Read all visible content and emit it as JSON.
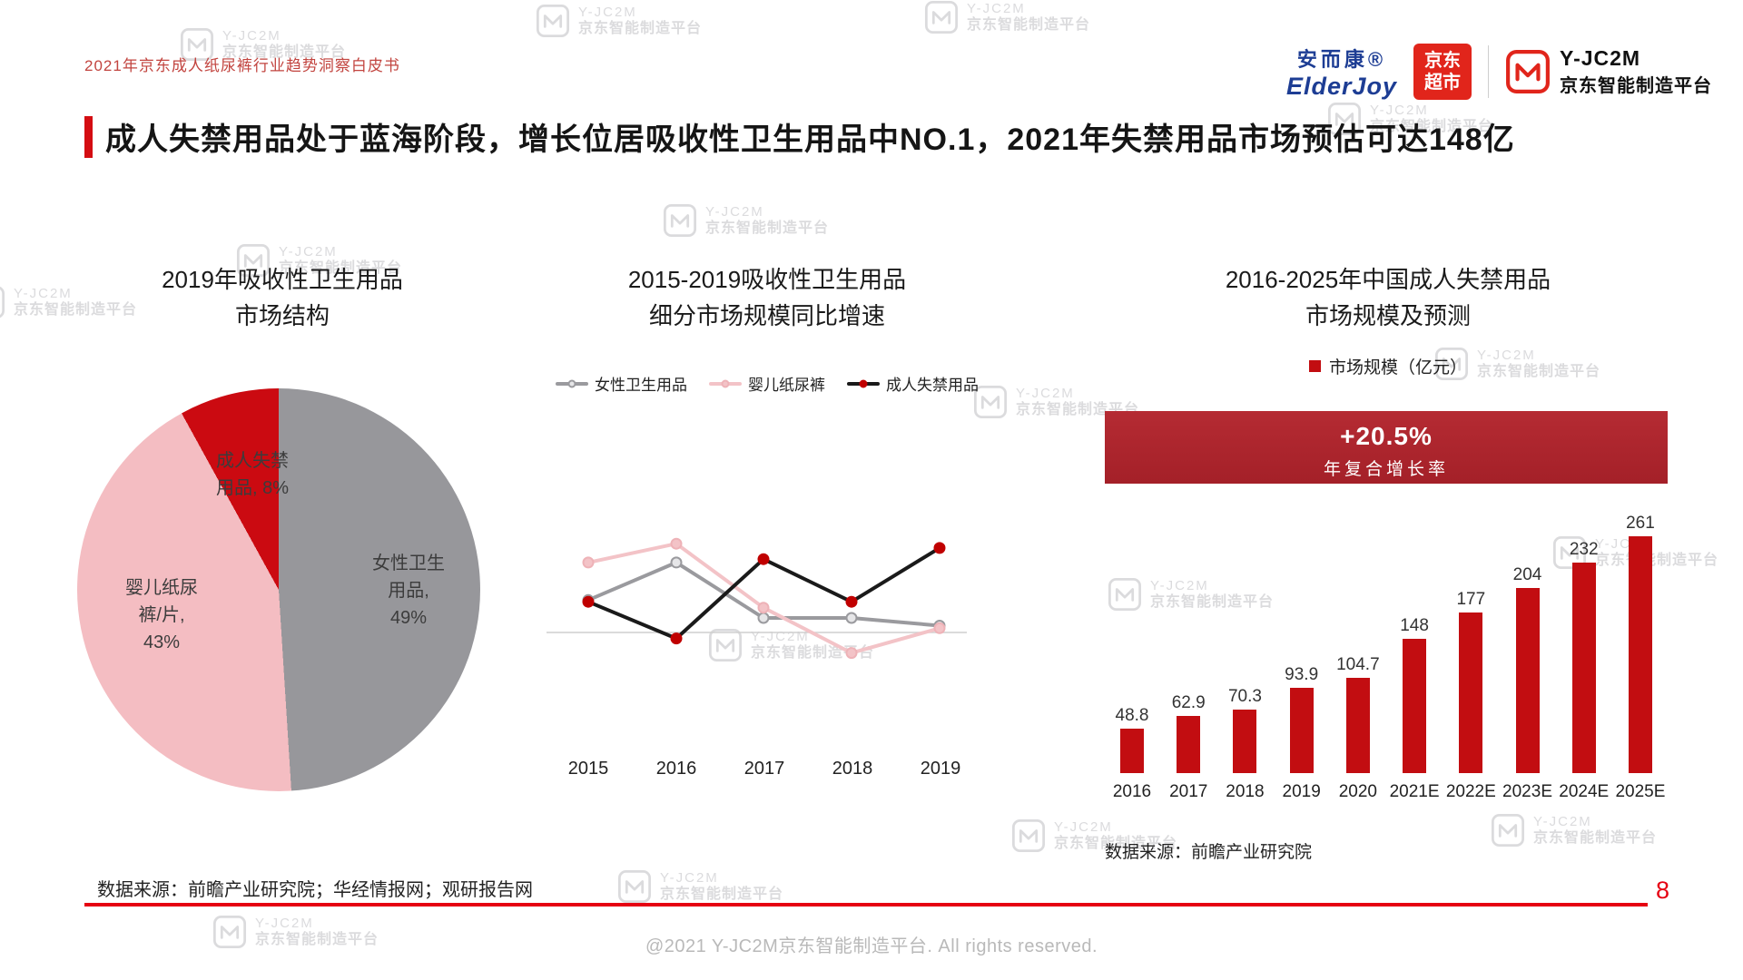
{
  "header": {
    "note": "2021年京东成人纸尿裤行业趋势洞察白皮书"
  },
  "logos": {
    "elderjoy_cn": "安而康®",
    "elderjoy_en": "ElderJoy",
    "jd_line1": "京东",
    "jd_line2": "超市",
    "yjc2m_name": "Y-JC2M",
    "yjc2m_sub": "京东智能制造平台"
  },
  "title": "成人失禁用品处于蓝海阶段，增长位居吸收性卫生用品中NO.1，2021年失禁用品市场预估可达148亿",
  "watermark": {
    "line1": "Y-JC2M",
    "line2": "京东智能制造平台"
  },
  "charts": {
    "pie": {
      "title_line1": "2019年吸收性卫生用品",
      "title_line2": "市场结构",
      "label_female": "女性卫生\n用品,\n49%",
      "label_baby": "婴儿纸尿\n裤/片,\n43%",
      "label_adult": "成人失禁\n用品, 8%"
    },
    "line": {
      "title_line1": "2015-2019吸收性卫生用品",
      "title_line2": "细分市场规模同比增速"
    },
    "bar": {
      "title_line1": "2016-2025年中国成人失禁用品",
      "title_line2": "市场规模及预测",
      "legend": "市场规模（亿元）",
      "cagr": "+20.5%",
      "cagr_label": "年复合增长率",
      "source": "数据来源：前瞻产业研究院"
    }
  },
  "chart_data": [
    {
      "id": "hygiene-market-structure-2019",
      "type": "pie",
      "title": "2019年吸收性卫生用品市场结构",
      "start_angle_deg": 0,
      "direction": "clockwise",
      "slices": [
        {
          "label": "女性卫生用品",
          "value_pct": 49,
          "color": "#97979b"
        },
        {
          "label": "婴儿纸尿裤/片",
          "value_pct": 43,
          "color": "#f4bdc2"
        },
        {
          "label": "成人失禁用品",
          "value_pct": 8,
          "color": "#cb0a11"
        }
      ]
    },
    {
      "id": "segment-growth-2015-2019",
      "type": "line",
      "title": "2015-2019吸收性卫生用品细分市场规模同比增速",
      "x": [
        "2015",
        "2016",
        "2017",
        "2018",
        "2019"
      ],
      "y_axis_labels_shown": false,
      "legend_position": "top",
      "series": [
        {
          "name": "女性卫生用品",
          "color": "#9a9a9e",
          "marker_fill": "#e6e6e8",
          "marker_stroke": "#9a9a9e",
          "values_pct_est": [
            3.8,
            8.2,
            1.7,
            1.7,
            0.8
          ]
        },
        {
          "name": "婴儿纸尿裤",
          "color": "#f3c3c7",
          "marker_fill": "#f3c3c7",
          "marker_stroke": "#eeb2b7",
          "values_pct_est": [
            8.2,
            10.4,
            2.9,
            -2.4,
            0.5
          ]
        },
        {
          "name": "成人失禁用品",
          "color": "#1a1a1a",
          "marker_fill": "#c00000",
          "marker_stroke": "#c00000",
          "values_pct_est": [
            3.6,
            -0.7,
            8.6,
            3.6,
            9.9
          ]
        }
      ]
    },
    {
      "id": "adult-incontinence-market-size",
      "type": "bar",
      "title": "2016-2025年中国成人失禁用品市场规模及预测",
      "legend": "市场规模（亿元）",
      "categories": [
        "2016",
        "2017",
        "2018",
        "2019",
        "2020",
        "2021E",
        "2022E",
        "2023E",
        "2024E",
        "2025E"
      ],
      "values": [
        48.8,
        62.9,
        70.3,
        93.9,
        104.7,
        148,
        177,
        204,
        232,
        261
      ],
      "bar_color": "#c20d11",
      "annotation": {
        "cagr": "+20.5%",
        "label": "年复合增长率"
      },
      "source": "数据来源：前瞻产业研究院"
    }
  ],
  "footer": {
    "source": "数据来源：前瞻产业研究院；华经情报网；观研报告网",
    "page": "8",
    "copyright": "@2021 Y-JC2M京东智能制造平台. All rights reserved."
  }
}
